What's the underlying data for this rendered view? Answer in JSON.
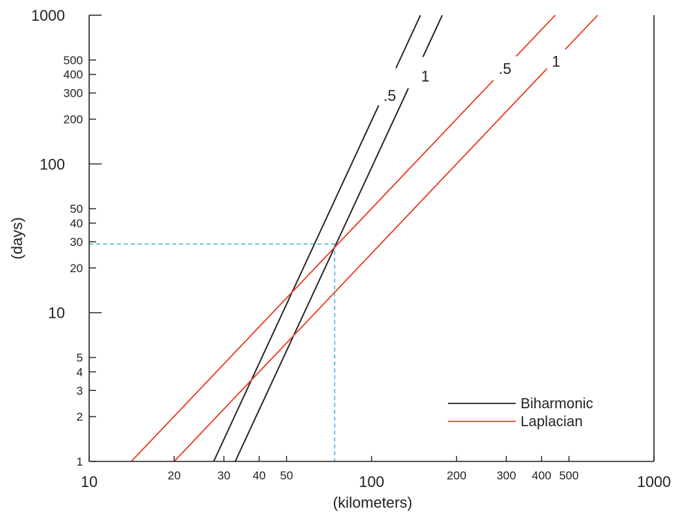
{
  "chart_data": {
    "type": "line",
    "scale": "log-log",
    "xlabel": "(kilometers)",
    "ylabel": "(days)",
    "xlim": [
      10,
      1000
    ],
    "ylim": [
      1,
      1000
    ],
    "x_ticks": [
      {
        "value": 10,
        "label": "10",
        "major": true
      },
      {
        "value": 20,
        "label": "20",
        "major": false
      },
      {
        "value": 30,
        "label": "30",
        "major": false
      },
      {
        "value": 40,
        "label": "40",
        "major": false
      },
      {
        "value": 50,
        "label": "50",
        "major": false
      },
      {
        "value": 100,
        "label": "100",
        "major": true
      },
      {
        "value": 200,
        "label": "200",
        "major": false
      },
      {
        "value": 300,
        "label": "300",
        "major": false
      },
      {
        "value": 400,
        "label": "400",
        "major": false
      },
      {
        "value": 500,
        "label": "500",
        "major": false
      },
      {
        "value": 1000,
        "label": "1000",
        "major": true
      }
    ],
    "y_ticks": [
      {
        "value": 1,
        "label": "1",
        "major": false
      },
      {
        "value": 2,
        "label": "2",
        "major": false
      },
      {
        "value": 3,
        "label": "3",
        "major": false
      },
      {
        "value": 4,
        "label": "4",
        "major": false
      },
      {
        "value": 5,
        "label": "5",
        "major": false
      },
      {
        "value": 10,
        "label": "10",
        "major": true
      },
      {
        "value": 20,
        "label": "20",
        "major": false
      },
      {
        "value": 30,
        "label": "30",
        "major": false
      },
      {
        "value": 40,
        "label": "40",
        "major": false
      },
      {
        "value": 50,
        "label": "50",
        "major": false
      },
      {
        "value": 100,
        "label": "100",
        "major": true
      },
      {
        "value": 200,
        "label": "200",
        "major": false
      },
      {
        "value": 300,
        "label": "300",
        "major": false
      },
      {
        "value": 400,
        "label": "400",
        "major": false
      },
      {
        "value": 500,
        "label": "500",
        "major": false
      },
      {
        "value": 1000,
        "label": "1000",
        "major": true
      }
    ],
    "series": [
      {
        "group": "Biharmonic",
        "curve_label": ".5",
        "color": "#231f20",
        "x": [
          27.6,
          149
        ],
        "y": [
          1,
          1000
        ],
        "label_at": {
          "x": 116,
          "y": 290
        },
        "gap": [
          [
            106,
            122
          ]
        ]
      },
      {
        "group": "Biharmonic",
        "curve_label": "1",
        "color": "#231f20",
        "x": [
          32.9,
          178
        ],
        "y": [
          1,
          1000
        ],
        "label_at": {
          "x": 155,
          "y": 390
        },
        "gap": [
          [
            135,
            152
          ]
        ]
      },
      {
        "group": "Laplacian",
        "curve_label": ".5",
        "color": "#e8432d",
        "x": [
          14.1,
          447
        ],
        "y": [
          1,
          1000
        ],
        "label_at": {
          "x": 297,
          "y": 440
        },
        "gap": [
          [
            270,
            325
          ]
        ]
      },
      {
        "group": "Laplacian",
        "curve_label": "1",
        "color": "#e8432d",
        "x": [
          20,
          632
        ],
        "y": [
          1,
          1000
        ],
        "label_at": {
          "x": 450,
          "y": 490
        },
        "gap": [
          [
            418,
            485
          ]
        ]
      }
    ],
    "reference": {
      "x": 74,
      "y": 29,
      "color": "#2aa3d4"
    },
    "legend": {
      "position": "bottom-right",
      "entries": [
        {
          "label": "Biharmonic",
          "color": "#231f20"
        },
        {
          "label": "Laplacian",
          "color": "#e8432d"
        }
      ]
    },
    "grid": false
  }
}
